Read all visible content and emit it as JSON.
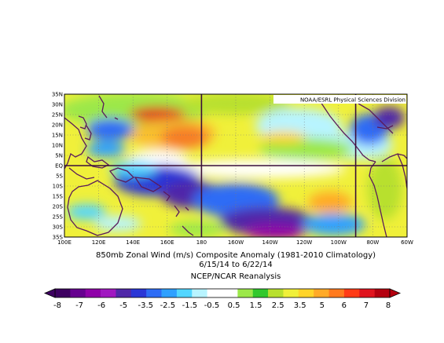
{
  "credit": "NOAA/ESRL Physical Sciences Division",
  "caption": {
    "line1": "850mb Zonal Wind (m/s) Composite Anomaly (1981-2010 Climatology)",
    "line2": "6/15/14  to 6/22/14",
    "line3": "NCEP/NCAR Reanalysis"
  },
  "map": {
    "lat_labels": [
      "35N",
      "30N",
      "25N",
      "20N",
      "15N",
      "10N",
      "5N",
      "EQ",
      "5S",
      "10S",
      "15S",
      "20S",
      "25S",
      "30S",
      "35S"
    ],
    "lon_labels": [
      "100E",
      "120E",
      "140E",
      "160E",
      "180",
      "160W",
      "140W",
      "120W",
      "100W",
      "80W",
      "60W"
    ],
    "reference_lines": {
      "equator": "EQ",
      "meridians": [
        "180",
        "90W"
      ]
    }
  },
  "colorbar": {
    "labels": [
      "-8",
      "-7",
      "-6",
      "-5",
      "-3.5",
      "-2.5",
      "-1.5",
      "-0.5",
      "0.5",
      "1.5",
      "2.5",
      "3.5",
      "5",
      "6",
      "7",
      "8"
    ],
    "colors": [
      "#3d0060",
      "#66008f",
      "#8f00a8",
      "#a018c0",
      "#5028a8",
      "#2a36d6",
      "#2d6cf5",
      "#2ea0ff",
      "#52d6ff",
      "#b8f4ff",
      "#ffffff",
      "#ffffff",
      "#9ce84a",
      "#32c82d",
      "#b8e02e",
      "#f0f03a",
      "#ffd42a",
      "#ffaa28",
      "#ff7a1e",
      "#ff3b16",
      "#e0141e",
      "#b4000f"
    ]
  }
}
